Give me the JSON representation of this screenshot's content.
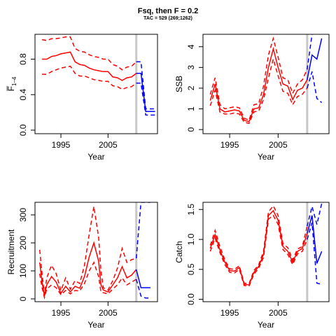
{
  "title": "Fsq, then F = 0.2",
  "subtitle": "TAC = 529 (269;1262)",
  "colors": {
    "red": "#ff0000",
    "blue": "#0000ff",
    "grey": "#c8c8c8"
  },
  "chart_data": [
    {
      "type": "line",
      "name": "fbar",
      "xlabel": "Year",
      "ylabel": "F̅",
      "ylabel_sub": "1–4",
      "xlim": [
        1989.5,
        2015.5
      ],
      "ylim": [
        -0.04,
        1.08
      ],
      "xticks": [
        1995,
        2005
      ],
      "yticks": [
        0.0,
        0.4,
        0.8
      ],
      "ytick_labels": [
        "0.0",
        "0.4",
        "0.8"
      ],
      "vline": 2011,
      "historic": {
        "x": [
          1991,
          1992,
          1993,
          1994,
          1995,
          1996,
          1997,
          1998,
          1999,
          2000,
          2001,
          2002,
          2003,
          2004,
          2005,
          2006,
          2007,
          2008,
          2009,
          2010,
          2011
        ],
        "median": [
          0.8,
          0.8,
          0.83,
          0.84,
          0.86,
          0.87,
          0.88,
          0.77,
          0.74,
          0.73,
          0.7,
          0.68,
          0.67,
          0.66,
          0.66,
          0.6,
          0.59,
          0.56,
          0.59,
          0.6,
          0.64
        ],
        "upper": [
          1.02,
          1.01,
          1.03,
          1.03,
          1.04,
          1.05,
          1.05,
          0.92,
          0.89,
          0.88,
          0.85,
          0.83,
          0.82,
          0.8,
          0.8,
          0.74,
          0.72,
          0.68,
          0.71,
          0.72,
          0.77
        ],
        "lower": [
          0.63,
          0.63,
          0.66,
          0.68,
          0.7,
          0.71,
          0.72,
          0.64,
          0.61,
          0.61,
          0.59,
          0.57,
          0.56,
          0.55,
          0.55,
          0.5,
          0.49,
          0.46,
          0.48,
          0.49,
          0.53
        ]
      },
      "projection": {
        "x": [
          2011,
          2012,
          2013,
          2014,
          2015
        ],
        "median": [
          0.64,
          0.64,
          0.21,
          0.21,
          0.21
        ],
        "upper": [
          0.77,
          0.77,
          0.24,
          0.24,
          0.24
        ],
        "lower": [
          0.53,
          0.53,
          0.17,
          0.17,
          0.17
        ]
      }
    },
    {
      "type": "line",
      "name": "ssb",
      "xlabel": "Year",
      "ylabel": "SSB",
      "xlim": [
        1989.5,
        2015.5
      ],
      "ylim": [
        -0.2,
        4.6
      ],
      "xticks": [
        1995,
        2005
      ],
      "yticks": [
        0,
        1,
        2,
        3,
        4
      ],
      "ytick_labels": [
        "0",
        "1",
        "2",
        "3",
        "4"
      ],
      "vline": 2011,
      "historic": {
        "x": [
          1991,
          1992,
          1993,
          1994,
          1995,
          1996,
          1997,
          1998,
          1999,
          2000,
          2001,
          2002,
          2003,
          2004,
          2005,
          2006,
          2007,
          2008,
          2009,
          2010,
          2011
        ],
        "median": [
          1.4,
          2.2,
          1.0,
          0.85,
          0.9,
          0.95,
          0.9,
          0.45,
          0.38,
          1.0,
          1.05,
          1.7,
          3.0,
          3.9,
          3.0,
          2.2,
          2.1,
          1.45,
          1.9,
          2.0,
          2.4
        ],
        "upper": [
          1.7,
          2.5,
          1.2,
          1.0,
          1.05,
          1.1,
          1.05,
          0.55,
          0.45,
          1.2,
          1.25,
          2.1,
          3.6,
          4.4,
          3.5,
          2.5,
          2.4,
          1.75,
          2.2,
          2.4,
          2.9
        ],
        "lower": [
          1.15,
          1.9,
          0.85,
          0.75,
          0.75,
          0.8,
          0.75,
          0.35,
          0.3,
          0.85,
          0.9,
          1.45,
          2.5,
          3.4,
          2.6,
          1.85,
          1.75,
          1.2,
          1.6,
          1.7,
          2.0
        ]
      },
      "projection": {
        "x": [
          2011,
          2012,
          2013,
          2014
        ],
        "median": [
          2.4,
          3.6,
          3.4,
          4.4
        ],
        "upper": [
          2.9,
          4.6,
          4.8,
          4.8
        ],
        "lower": [
          2.0,
          2.8,
          1.5,
          1.3
        ]
      }
    },
    {
      "type": "line",
      "name": "recruitment",
      "xlabel": "Year",
      "ylabel": "Recruitment",
      "xlim": [
        1989.5,
        2015.5
      ],
      "ylim": [
        -10,
        345
      ],
      "xticks": [
        1995,
        2005
      ],
      "yticks": [
        0,
        100,
        200,
        300
      ],
      "ytick_labels": [
        "0",
        "100",
        "200",
        "300"
      ],
      "vline": 2011,
      "historic": {
        "x": [
          1990.5,
          1991,
          1991.5,
          1992,
          1993,
          1994,
          1995,
          1996,
          1997,
          1998,
          1999,
          2000,
          2001,
          2002,
          2003,
          2003.5,
          2004,
          2004.5,
          2005,
          2006,
          2007,
          2008,
          2009,
          2010,
          2011
        ],
        "median": [
          130,
          60,
          10,
          50,
          80,
          60,
          20,
          45,
          25,
          45,
          38,
          80,
          150,
          200,
          135,
          50,
          32,
          28,
          25,
          50,
          75,
          115,
          75,
          85,
          105
        ],
        "upper": [
          175,
          90,
          15,
          75,
          120,
          90,
          30,
          75,
          35,
          65,
          55,
          120,
          230,
          330,
          220,
          100,
          40,
          35,
          32,
          65,
          110,
          180,
          130,
          140,
          145
        ],
        "lower": [
          90,
          40,
          5,
          35,
          50,
          40,
          15,
          30,
          18,
          30,
          28,
          55,
          100,
          130,
          80,
          25,
          22,
          20,
          18,
          35,
          50,
          75,
          50,
          60,
          70
        ]
      },
      "projection": {
        "x": [
          2011,
          2012,
          2013,
          2014
        ],
        "median": [
          105,
          40,
          40,
          40
        ],
        "upper": [
          145,
          345,
          345,
          345
        ],
        "lower": [
          70,
          10,
          3,
          3
        ]
      }
    },
    {
      "type": "line",
      "name": "catch",
      "xlabel": "Year",
      "ylabel": "Catch",
      "xlim": [
        1989.5,
        2015.5
      ],
      "ylim": [
        -0.04,
        1.62
      ],
      "xticks": [
        1995,
        2005
      ],
      "yticks": [
        0.0,
        0.5,
        1.0,
        1.5
      ],
      "ytick_labels": [
        "0.0",
        "0.5",
        "1.0",
        "1.5"
      ],
      "vline": 2011,
      "historic": {
        "x": [
          1991,
          1992,
          1993,
          1994,
          1995,
          1996,
          1997,
          1998,
          1999,
          2000,
          2001,
          2002,
          2003,
          2004,
          2005,
          2006,
          2007,
          2008,
          2009,
          2010,
          2011
        ],
        "median": [
          0.85,
          1.08,
          0.82,
          0.62,
          0.48,
          0.47,
          0.53,
          0.25,
          0.24,
          0.45,
          0.55,
          0.75,
          1.4,
          1.48,
          1.32,
          0.88,
          0.8,
          0.62,
          0.8,
          0.85,
          1.1
        ],
        "upper": [
          0.9,
          1.15,
          0.88,
          0.66,
          0.51,
          0.5,
          0.56,
          0.27,
          0.26,
          0.48,
          0.58,
          0.8,
          1.46,
          1.56,
          1.4,
          0.93,
          0.86,
          0.66,
          0.84,
          0.88,
          1.22
        ],
        "lower": [
          0.8,
          1.02,
          0.78,
          0.58,
          0.45,
          0.44,
          0.5,
          0.23,
          0.22,
          0.42,
          0.52,
          0.7,
          1.34,
          1.4,
          1.25,
          0.83,
          0.75,
          0.58,
          0.76,
          0.8,
          1.0
        ]
      },
      "projection": {
        "x": [
          2011,
          2012,
          2013,
          2014
        ],
        "median": [
          1.1,
          1.4,
          0.6,
          0.8
        ],
        "upper": [
          1.22,
          1.55,
          1.25,
          1.6
        ],
        "lower": [
          1.0,
          1.28,
          0.27,
          0.25
        ]
      }
    }
  ]
}
